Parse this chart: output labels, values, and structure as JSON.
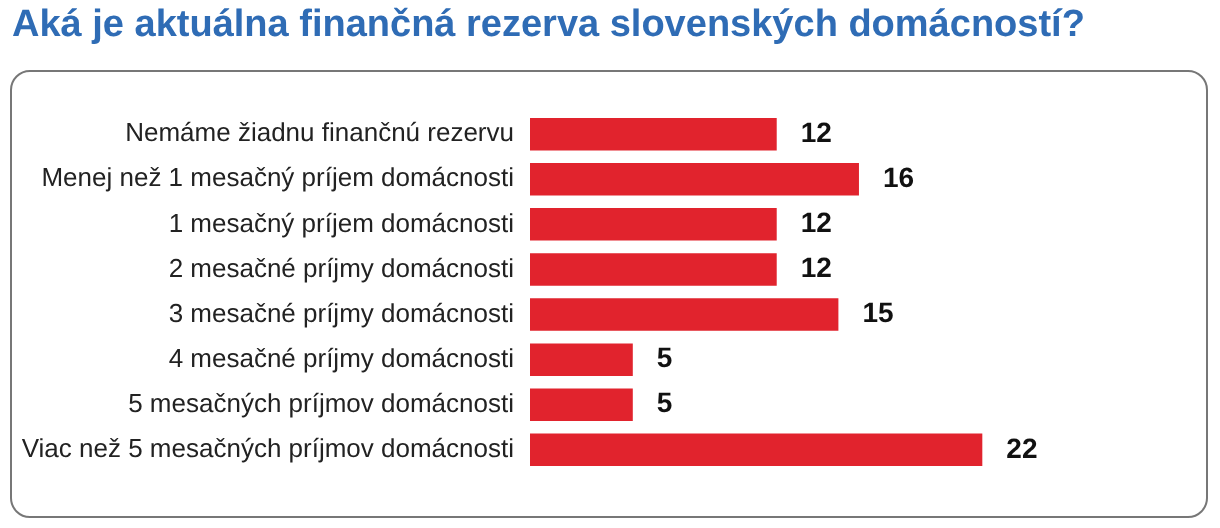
{
  "chart_data": {
    "type": "bar",
    "orientation": "horizontal",
    "title": "Aká je aktuálna finančná rezerva slovenských domácností?",
    "categories": [
      "Nemáme žiadnu finančnú rezervu",
      "Menej než 1 mesačný príjem domácnosti",
      "1 mesačný príjem domácnosti",
      "2 mesačné príjmy domácnosti",
      "3 mesačné príjmy domácnosti",
      "4 mesačné príjmy domácnosti",
      "5 mesačných príjmov domácnosti",
      "Viac než 5 mesačných príjmov domácnosti"
    ],
    "values": [
      12,
      16,
      12,
      12,
      15,
      5,
      5,
      22
    ],
    "color": "#e1232d",
    "data_labels": true,
    "tick_labels": "y",
    "legend": false
  }
}
